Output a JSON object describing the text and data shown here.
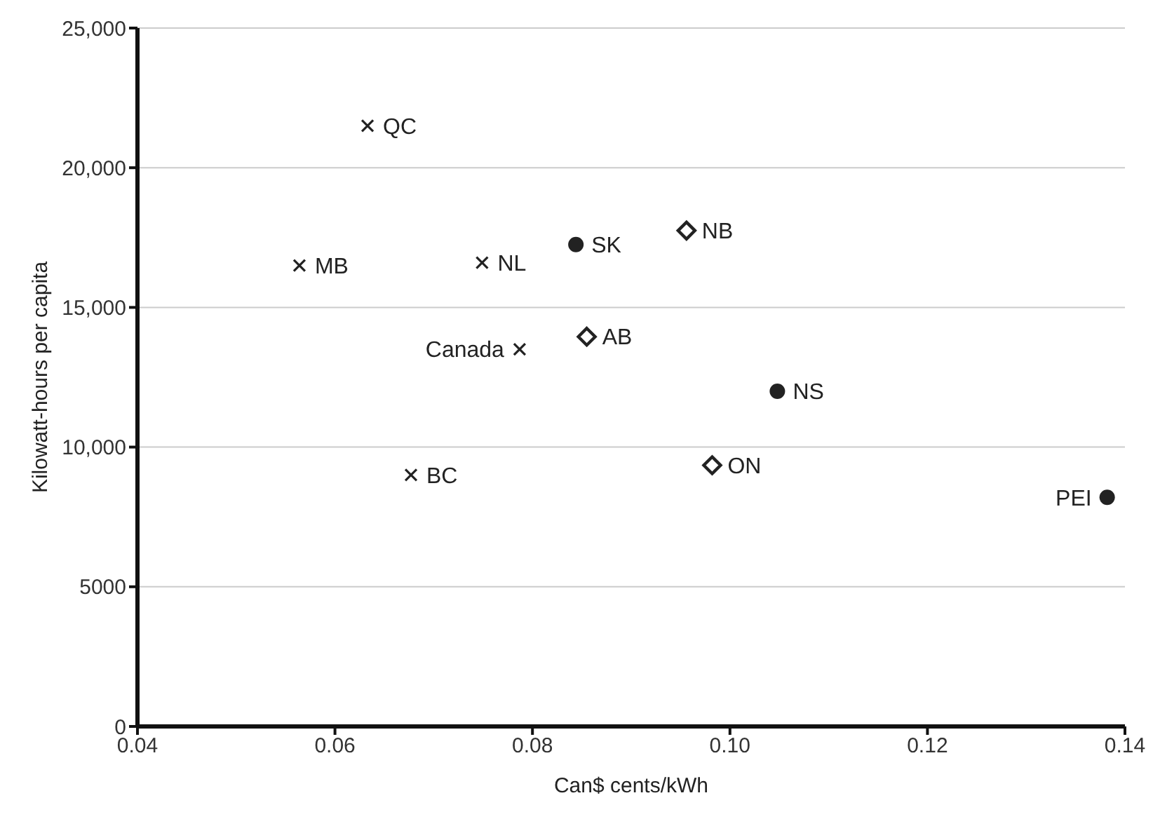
{
  "chart_data": {
    "type": "scatter",
    "xlabel": "Can$ cents/kWh",
    "ylabel": "Kilowatt-hours per capita",
    "xlim": [
      0.04,
      0.14
    ],
    "xticks": [
      0.04,
      0.06,
      0.08,
      {
        "value": 0.1,
        "label": "0.10"
      },
      0.12,
      0.14
    ],
    "ylim": [
      0,
      25000
    ],
    "yticks": [
      0,
      5000,
      {
        "value": 10000,
        "label": "10,000"
      },
      {
        "value": 15000,
        "label": "15,000"
      },
      {
        "value": 20000,
        "label": "20,000"
      },
      {
        "value": 25000,
        "label": "25,000"
      }
    ],
    "grid": "y",
    "legend": false,
    "series": [
      {
        "color": "#222222",
        "marker": "cross",
        "x": [
          0.0633,
          0.0564,
          0.0749,
          0.0677
        ],
        "values": [
          21500,
          16500,
          16600,
          9000
        ]
      },
      {
        "color": "#222222",
        "marker": "circle",
        "x": [
          0.0844,
          0.1048,
          0.1382
        ],
        "values": [
          17250,
          12000,
          8200
        ]
      },
      {
        "color": "#222222",
        "marker": "diamond",
        "x": [
          0.0956,
          0.0855,
          0.0982
        ],
        "values": [
          17750,
          13950,
          9350
        ]
      },
      {
        "color": "#222222",
        "marker": "cross",
        "x": [
          0.0787
        ],
        "values": [
          13500
        ]
      }
    ],
    "annotations": [
      {
        "text": "QC",
        "x": 0.0633,
        "y": 21500
      },
      {
        "text": "MB",
        "x": 0.0564,
        "y": 16500
      },
      {
        "text": "NL",
        "x": 0.0749,
        "y": 16600
      },
      {
        "text": "BC",
        "x": 0.0677,
        "y": 9000
      },
      {
        "text": "SK",
        "x": 0.0844,
        "y": 17250
      },
      {
        "text": "NS",
        "x": 0.1048,
        "y": 12000
      },
      {
        "text": "PEI",
        "x": 0.1382,
        "y": 8200
      },
      {
        "text": "NB",
        "x": 0.0956,
        "y": 17750
      },
      {
        "text": "AB",
        "x": 0.0855,
        "y": 13950
      },
      {
        "text": "ON",
        "x": 0.0982,
        "y": 9350
      },
      {
        "text": "Canada",
        "x": 0.0787,
        "y": 13500
      }
    ]
  }
}
